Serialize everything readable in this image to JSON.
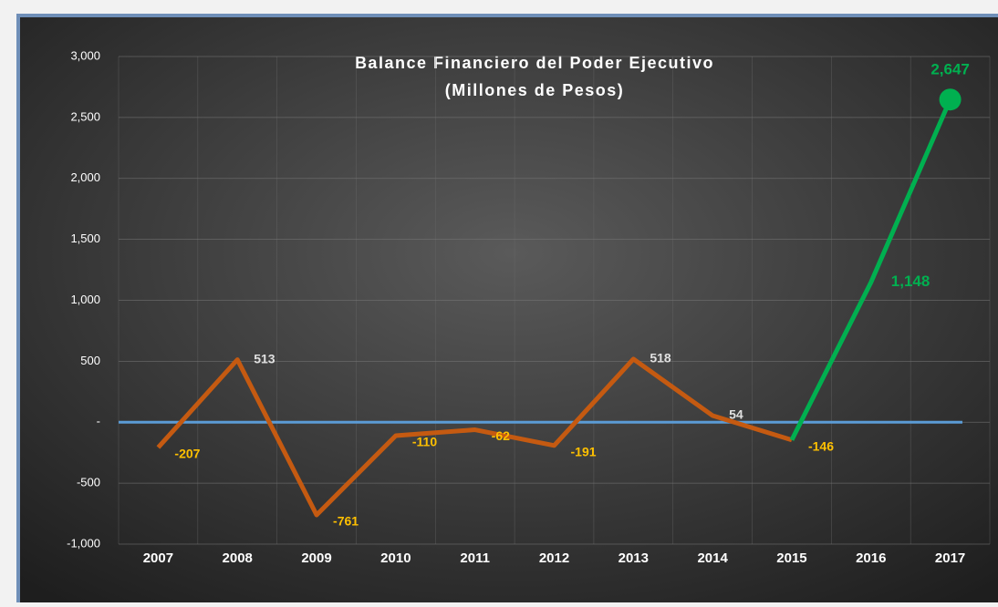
{
  "chart_data": {
    "type": "line",
    "title": "Balance Financiero del Poder Ejecutivo",
    "subtitle": "(Millones de Pesos)",
    "categories": [
      "2007",
      "2008",
      "2009",
      "2010",
      "2011",
      "2012",
      "2013",
      "2014",
      "2015",
      "2016",
      "2017"
    ],
    "series": [
      {
        "color": "#c55a11",
        "values": [
          -207,
          513,
          -761,
          -110,
          -62,
          -191,
          518,
          54,
          -146,
          null,
          null
        ]
      },
      {
        "color": "#00b050",
        "values": [
          null,
          null,
          null,
          null,
          null,
          null,
          null,
          null,
          -146,
          1148,
          2647
        ],
        "value_labels": [
          null,
          null,
          null,
          null,
          null,
          null,
          null,
          null,
          null,
          "1,148",
          "2,647"
        ]
      }
    ],
    "ylim": [
      -1000,
      3000
    ],
    "yticks": [
      {
        "value": -1000,
        "label": "-1,000"
      },
      -500,
      {
        "value": 0,
        "label": "-"
      },
      500,
      {
        "value": 1000,
        "label": "1,000"
      },
      {
        "value": 1500,
        "label": "1,500"
      },
      {
        "value": 2000,
        "label": "2,000"
      },
      {
        "value": 2500,
        "label": "2,500"
      },
      {
        "value": 3000,
        "label": "3,000"
      }
    ],
    "zero_line_color": "#5b9bd5",
    "grid": true
  }
}
